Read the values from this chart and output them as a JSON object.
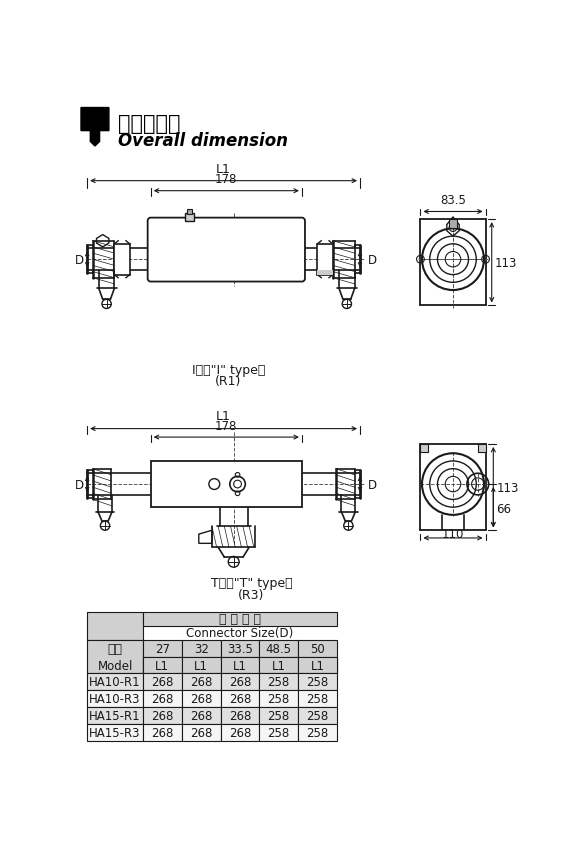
{
  "title_cn": "安装外形图",
  "title_en": "Overall dimension",
  "type1_label_cn": "I型（\"I\" type）",
  "type1_label_en": "(R1)",
  "type2_label_cn": "T型（\"T\" type）",
  "type2_label_en": "(R3)",
  "dim_L1": "L1",
  "dim_178": "178",
  "dim_D": "D",
  "dim_83_5": "83.5",
  "dim_113": "113",
  "dim_66": "66",
  "dim_110": "110",
  "table_header1_cn": "接 头 规 格",
  "table_header1_en": "Connector Size(D)",
  "table_col0_cn": "型号",
  "table_col0_en": "Model",
  "table_cols": [
    "27\nL1",
    "32\nL1",
    "33.5\nL1",
    "48.5\nL1",
    "50\nL1"
  ],
  "table_rows": [
    [
      "HA10-R1",
      "268",
      "268",
      "268",
      "258",
      "258"
    ],
    [
      "HA10-R3",
      "268",
      "268",
      "268",
      "258",
      "258"
    ],
    [
      "HA15-R1",
      "268",
      "268",
      "268",
      "258",
      "258"
    ],
    [
      "HA15-R3",
      "268",
      "268",
      "268",
      "258",
      "258"
    ]
  ],
  "bg_color": "#ffffff",
  "line_color": "#1a1a1a",
  "table_header_bg": "#d0d0d0",
  "table_row_bg_even": "#e0e0e0",
  "table_row_bg_odd": "#f5f5f5"
}
